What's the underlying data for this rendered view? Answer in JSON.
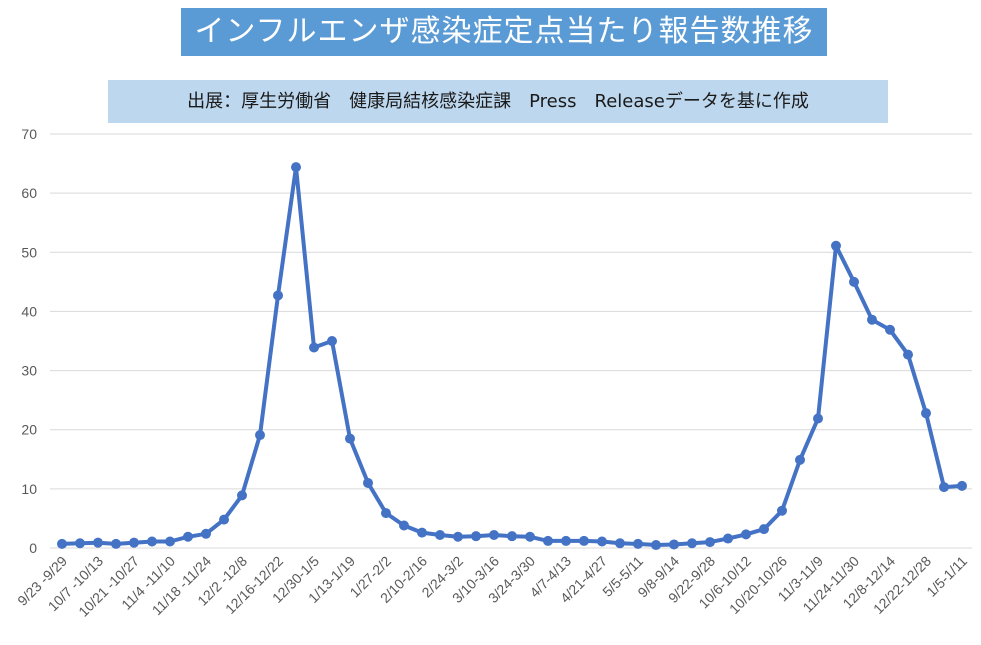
{
  "title": "インフルエンザ感染症定点当たり報告数推移",
  "source": "出展：厚生労働省　健康局結核感染症課　Press　Releaseデータを基に作成",
  "colors": {
    "title_bg": "#5b9bd5",
    "source_bg": "#bdd7ee",
    "line": "#4472c4",
    "grid": "#d9d9d9"
  },
  "chart_data": {
    "type": "line",
    "title": "インフルエンザ感染症定点当たり報告数推移",
    "ylim": [
      0,
      70
    ],
    "yticks": [
      0,
      10,
      20,
      30,
      40,
      50,
      60,
      70
    ],
    "grid": true,
    "legend": "none",
    "tick_labels": [
      "9/23 -9/29",
      "10/7 -10/13",
      "10/21 -10/27",
      "11/4 -11/10",
      "11/18 -11/24",
      "12/2 -12/8",
      "12/16-12/22",
      "12/30-1/5",
      "1/13-1/19",
      "1/27-2/2",
      "2/10-2/16",
      "2/24-3/2",
      "3/10-3/16",
      "3/24-3/30",
      "4/7-4/13",
      "4/21-4/27",
      "5/5-5/11",
      "9/8-9/14",
      "9/22-9/28",
      "10/6-10/12",
      "10/20-10/26",
      "11/3-11/9",
      "11/24-11/30",
      "12/8-12/14",
      "12/22-12/28",
      "1/5-1/11"
    ],
    "series": [
      {
        "values": [
          0.7,
          0.8,
          0.9,
          0.7,
          0.9,
          1.1,
          1.1,
          1.9,
          2.4,
          4.8,
          8.9,
          19.1,
          42.7,
          64.4,
          33.9,
          35.0,
          18.5,
          11.0,
          5.9,
          3.8,
          2.6,
          2.2,
          1.9,
          2.0,
          2.2,
          2.0,
          1.9,
          1.2,
          1.2,
          1.2,
          1.1,
          0.8,
          0.7,
          0.5,
          0.6,
          0.8,
          1.0,
          1.6,
          2.3,
          3.2,
          6.3,
          14.9,
          21.9,
          51.1,
          45.0,
          38.6,
          36.9,
          32.7,
          22.8,
          10.3,
          10.5
        ]
      }
    ]
  }
}
